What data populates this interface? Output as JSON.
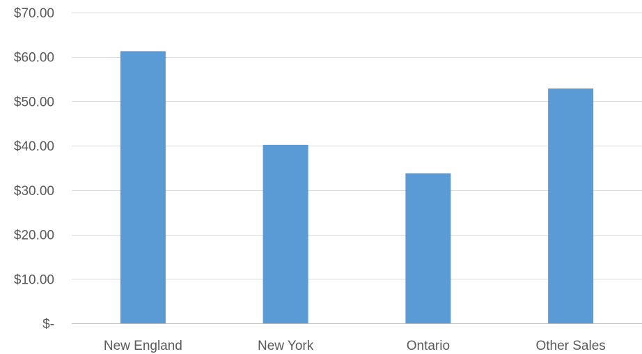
{
  "chart_data": {
    "type": "bar",
    "title": "",
    "xlabel": "",
    "ylabel": "",
    "categories": [
      "New England",
      "New York",
      "Ontario",
      "Other Sales"
    ],
    "values": [
      61.3,
      40.2,
      33.8,
      52.9
    ],
    "ylim": [
      0,
      70
    ],
    "yticks": [
      0,
      10,
      20,
      30,
      40,
      50,
      60,
      70
    ],
    "ytick_labels": [
      "$-",
      "$10.00",
      "$20.00",
      "$30.00",
      "$40.00",
      "$50.00",
      "$60.00",
      "$70.00"
    ],
    "grid": true,
    "legend": "none",
    "bar_color": "#5b9bd5",
    "grid_color": "#d9d9d9",
    "text_color": "#595959"
  }
}
